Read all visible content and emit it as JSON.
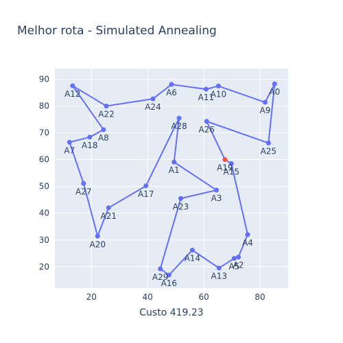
{
  "chart_data": {
    "type": "line",
    "title": "Melhor rota - Simulated Annealing",
    "xlabel": "Custo 419.23",
    "ylabel": "",
    "xlim": [
      7,
      90
    ],
    "ylim": [
      12,
      94
    ],
    "xticks": [
      20,
      40,
      60,
      80
    ],
    "yticks": [
      20,
      30,
      40,
      50,
      60,
      70,
      80,
      90
    ],
    "grid": true,
    "line_color": "#636efa",
    "highlight_color": "#ef553b",
    "series": [
      {
        "points": [
          {
            "label": "A19",
            "x": 67.5,
            "y": 60.0
          },
          {
            "label": "A26",
            "x": 61.0,
            "y": 74.3
          },
          {
            "label": "A25",
            "x": 83.0,
            "y": 66.2
          },
          {
            "label": "A0",
            "x": 85.2,
            "y": 88.3
          },
          {
            "label": "A9",
            "x": 81.8,
            "y": 81.4
          },
          {
            "label": "A10",
            "x": 65.2,
            "y": 87.5
          },
          {
            "label": "A11",
            "x": 60.8,
            "y": 86.3
          },
          {
            "label": "A6",
            "x": 48.5,
            "y": 88.1
          },
          {
            "label": "A24",
            "x": 41.9,
            "y": 82.7
          },
          {
            "label": "A22",
            "x": 25.3,
            "y": 80.0
          },
          {
            "label": "A12",
            "x": 13.3,
            "y": 87.6
          },
          {
            "label": "A8",
            "x": 24.3,
            "y": 71.2
          },
          {
            "label": "A18",
            "x": 19.4,
            "y": 68.4
          },
          {
            "label": "A7",
            "x": 12.2,
            "y": 66.5
          },
          {
            "label": "A27",
            "x": 17.2,
            "y": 51.1
          },
          {
            "label": "A20",
            "x": 22.2,
            "y": 31.4
          },
          {
            "label": "A21",
            "x": 26.1,
            "y": 42.0
          },
          {
            "label": "A17",
            "x": 39.4,
            "y": 50.2
          },
          {
            "label": "A28",
            "x": 51.2,
            "y": 75.5
          },
          {
            "label": "A1",
            "x": 49.4,
            "y": 59.1
          },
          {
            "label": "A3",
            "x": 64.5,
            "y": 48.6
          },
          {
            "label": "A23",
            "x": 51.8,
            "y": 45.5
          },
          {
            "label": "A29",
            "x": 44.5,
            "y": 19.2
          },
          {
            "label": "A16",
            "x": 47.6,
            "y": 16.9
          },
          {
            "label": "A14",
            "x": 55.9,
            "y": 26.2
          },
          {
            "label": "A13",
            "x": 65.4,
            "y": 19.5
          },
          {
            "label": "A5",
            "x": 70.8,
            "y": 23.1
          },
          {
            "label": "A2",
            "x": 72.3,
            "y": 23.6
          },
          {
            "label": "A4",
            "x": 75.6,
            "y": 32.0
          },
          {
            "label": "A15",
            "x": 69.8,
            "y": 58.5
          },
          {
            "label": "A19",
            "x": 67.5,
            "y": 60.0
          }
        ]
      }
    ]
  }
}
